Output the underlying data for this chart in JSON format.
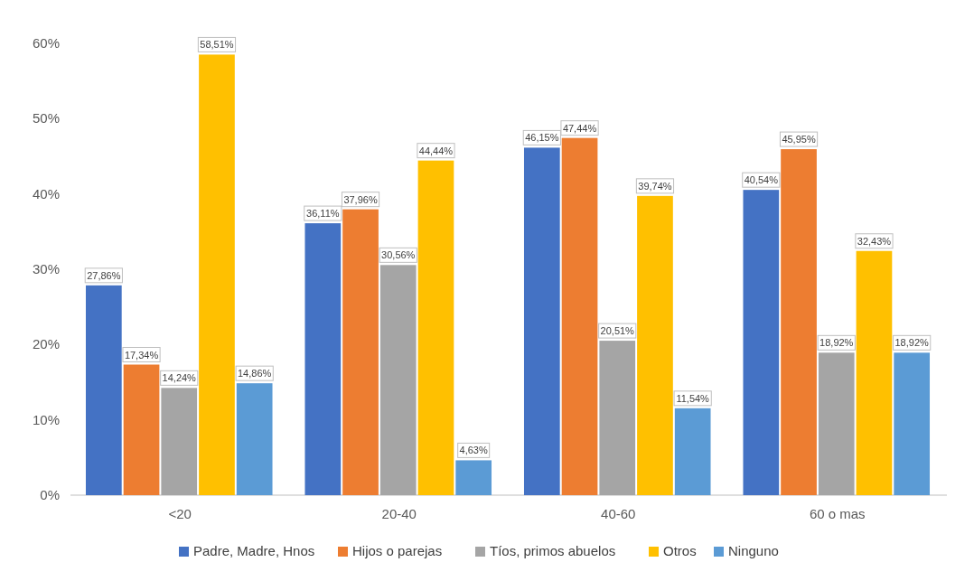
{
  "chart_data": {
    "type": "bar",
    "categories": [
      "<20",
      "20-40",
      "40-60",
      "60 o mas"
    ],
    "series": [
      {
        "name": "Padre, Madre, Hnos",
        "color": "#4472c4",
        "values": [
          27.86,
          36.11,
          46.15,
          40.54
        ],
        "value_labels": [
          "27,86%",
          "36,11%",
          "46,15%",
          "40,54%"
        ]
      },
      {
        "name": "Hijos o parejas",
        "color": "#ed7d31",
        "values": [
          17.34,
          37.96,
          47.44,
          45.95
        ],
        "value_labels": [
          "17,34%",
          "37,96%",
          "47,44%",
          "45,95%"
        ]
      },
      {
        "name": "Tíos, primos abuelos",
        "color": "#a5a5a5",
        "values": [
          14.24,
          30.56,
          20.51,
          18.92
        ],
        "value_labels": [
          "14,24%",
          "30,56%",
          "20,51%",
          "18,92%"
        ]
      },
      {
        "name": "Otros",
        "color": "#ffc000",
        "values": [
          58.51,
          44.44,
          39.74,
          32.43
        ],
        "value_labels": [
          "58,51%",
          "44,44%",
          "39,74%",
          "32,43%"
        ]
      },
      {
        "name": "Ninguno",
        "color": "#5b9bd5",
        "values": [
          14.86,
          4.63,
          11.54,
          18.92
        ],
        "value_labels": [
          "14,86%",
          "4,63%",
          "11,54%",
          "18,92%"
        ]
      }
    ],
    "ylim": [
      0,
      60
    ],
    "yticks": [
      {
        "value": 0,
        "label": "0%"
      },
      {
        "value": 10,
        "label": "10%"
      },
      {
        "value": 20,
        "label": "20%"
      },
      {
        "value": 30,
        "label": "30%"
      },
      {
        "value": 40,
        "label": "40%"
      },
      {
        "value": 50,
        "label": "50%"
      },
      {
        "value": 60,
        "label": "60%"
      }
    ],
    "grid": false,
    "legend": "bottom"
  }
}
